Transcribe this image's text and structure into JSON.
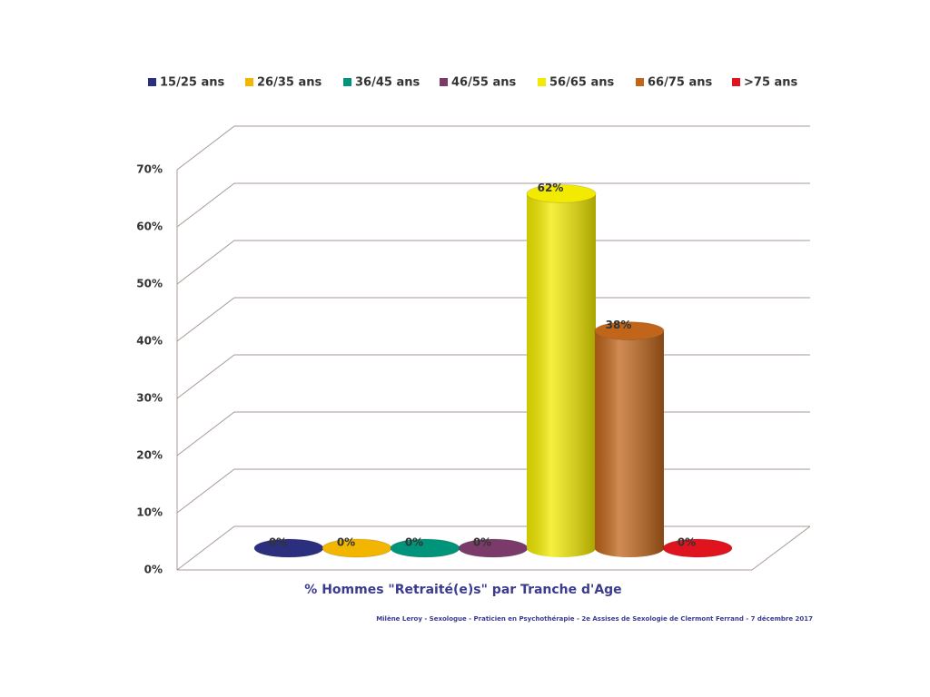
{
  "chart_data": {
    "type": "cylinder",
    "x_label": "% Hommes \"Retraité(e)s\" par Tranche d'Age",
    "source": "Milène Leroy - Sexologue - Praticien en Psychothérapie - 2e Assises de Sexologie de Clermont Ferrand - 7 décembre 2017",
    "series": [
      {
        "name": "15/25 ans",
        "color": "#2b2f7e",
        "values": [
          0
        ],
        "value_labels": [
          "0%"
        ]
      },
      {
        "name": "26/35 ans",
        "color": "#f2b500",
        "values": [
          0
        ],
        "value_labels": [
          "0%"
        ]
      },
      {
        "name": "36/45 ans",
        "color": "#00957a",
        "values": [
          0
        ],
        "value_labels": [
          "0%"
        ]
      },
      {
        "name": "46/55 ans",
        "color": "#7a3b6b",
        "values": [
          0
        ],
        "value_labels": [
          "0%"
        ]
      },
      {
        "name": "56/65 ans",
        "color": "#f2ea00",
        "values": [
          62
        ],
        "value_labels": [
          "62%"
        ]
      },
      {
        "name": "66/75 ans",
        "color": "#c0651a",
        "values": [
          38
        ],
        "value_labels": [
          "38%"
        ]
      },
      {
        "name": ">75 ans",
        "color": "#e0141e",
        "values": [
          0
        ],
        "value_labels": [
          "0%"
        ]
      }
    ],
    "ylim": [
      0,
      70
    ],
    "yticks": [
      {
        "value": 0,
        "label": "0%"
      },
      {
        "value": 10,
        "label": "10%"
      },
      {
        "value": 20,
        "label": "20%"
      },
      {
        "value": 30,
        "label": "30%"
      },
      {
        "value": 40,
        "label": "40%"
      },
      {
        "value": 50,
        "label": "50%"
      },
      {
        "value": 60,
        "label": "60%"
      },
      {
        "value": 70,
        "label": "70%"
      }
    ],
    "grid": true
  }
}
